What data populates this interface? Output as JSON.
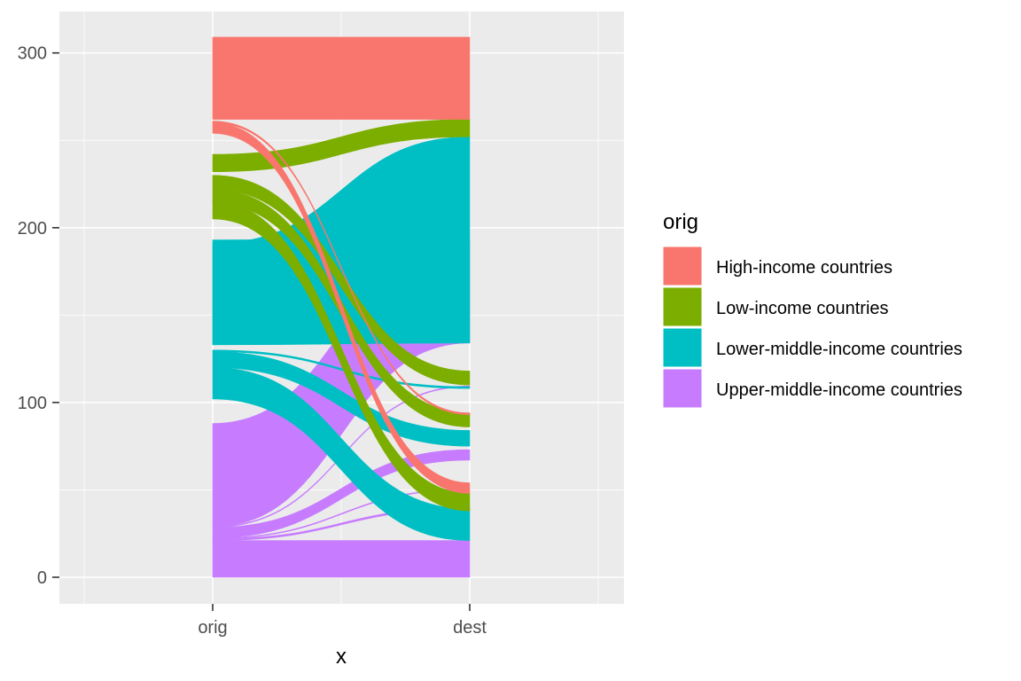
{
  "chart_data": {
    "type": "alluvial",
    "xlabel": "x",
    "ylabel": "",
    "x_categories": [
      "orig",
      "dest"
    ],
    "ylim": [
      -15,
      323
    ],
    "y_ticks": [
      0,
      100,
      200,
      300
    ],
    "grid": true,
    "legend": {
      "title": "orig",
      "placement": "right",
      "entries": [
        {
          "name": "High-income countries",
          "color": "#F8766D"
        },
        {
          "name": "Low-income countries",
          "color": "#7CAE00"
        },
        {
          "name": "Lower-middle-income countries",
          "color": "#00BFC4"
        },
        {
          "name": "Upper-middle-income countries",
          "color": "#C77CFF"
        }
      ]
    },
    "flows": [
      {
        "orig": "Upper-middle-income countries",
        "dest": "Upper-middle-income countries",
        "value": 21,
        "orig_y0": 0,
        "dest_y0": 0
      },
      {
        "orig": "Upper-middle-income countries",
        "dest": "Lower-middle-income countries",
        "value": 1,
        "orig_y0": 21,
        "dest_y0": 39
      },
      {
        "orig": "Upper-middle-income countries",
        "dest": "Low-income countries",
        "value": 0.5,
        "orig_y0": 22,
        "dest_y0": 50
      },
      {
        "orig": "Upper-middle-income countries",
        "dest": "Upper-middle-income countries",
        "value": 6,
        "orig_y0": 22.5,
        "dest_y0": 67
      },
      {
        "orig": "Upper-middle-income countries",
        "dest": "High-income countries",
        "value": 0.5,
        "orig_y0": 28.5,
        "dest_y0": 109
      },
      {
        "orig": "Upper-middle-income countries",
        "dest": "Upper-middle-income countries",
        "value": 59,
        "orig_y0": 29,
        "dest_y0": 134
      },
      {
        "orig": "Lower-middle-income countries",
        "dest": "Lower-middle-income countries",
        "value": 18,
        "orig_y0": 102,
        "dest_y0": 21
      },
      {
        "orig": "Lower-middle-income countries",
        "dest": "Lower-middle-income countries",
        "value": 9,
        "orig_y0": 120,
        "dest_y0": 75
      },
      {
        "orig": "Lower-middle-income countries",
        "dest": "Lower-middle-income countries",
        "value": 1,
        "orig_y0": 129,
        "dest_y0": 108
      },
      {
        "orig": "Lower-middle-income countries",
        "dest": "Upper-middle-income countries",
        "value": 60,
        "orig_y0": 133,
        "dest_y0": 134
      },
      {
        "orig": "Lower-middle-income countries",
        "dest": "Lower-middle-income countries",
        "value": 58,
        "orig_y0": 133,
        "dest_y0": 194
      },
      {
        "orig": "Low-income countries",
        "dest": "Low-income countries",
        "value": 10,
        "orig_y0": 205,
        "dest_y0": 38
      },
      {
        "orig": "Low-income countries",
        "dest": "Low-income countries",
        "value": 8,
        "orig_y0": 214,
        "dest_y0": 86
      },
      {
        "orig": "Low-income countries",
        "dest": "Low-income countries",
        "value": 8,
        "orig_y0": 222,
        "dest_y0": 110
      },
      {
        "orig": "Low-income countries",
        "dest": "Low-income countries",
        "value": 10,
        "orig_y0": 232,
        "dest_y0": 252
      },
      {
        "orig": "High-income countries",
        "dest": "High-income countries",
        "value": 6,
        "orig_y0": 254,
        "dest_y0": 48
      },
      {
        "orig": "High-income countries",
        "dest": "High-income countries",
        "value": 1,
        "orig_y0": 260,
        "dest_y0": 93
      },
      {
        "orig": "High-income countries",
        "dest": "High-income countries",
        "value": 47,
        "orig_y0": 262,
        "dest_y0": 262
      }
    ]
  }
}
